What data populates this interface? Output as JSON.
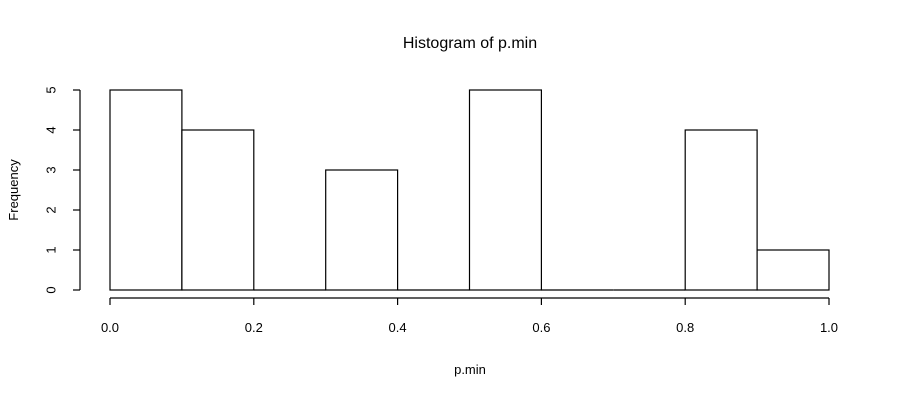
{
  "chart_data": {
    "type": "bar",
    "title": "Histogram of p.min",
    "xlabel": "p.min",
    "ylabel": "Frequency",
    "bins": [
      {
        "from": 0.0,
        "to": 0.1,
        "count": 5
      },
      {
        "from": 0.1,
        "to": 0.2,
        "count": 4
      },
      {
        "from": 0.2,
        "to": 0.3,
        "count": 0
      },
      {
        "from": 0.3,
        "to": 0.4,
        "count": 3
      },
      {
        "from": 0.4,
        "to": 0.5,
        "count": 0
      },
      {
        "from": 0.5,
        "to": 0.6,
        "count": 5
      },
      {
        "from": 0.6,
        "to": 0.7,
        "count": 0
      },
      {
        "from": 0.7,
        "to": 0.8,
        "count": 0
      },
      {
        "from": 0.8,
        "to": 0.9,
        "count": 4
      },
      {
        "from": 0.9,
        "to": 1.0,
        "count": 1
      }
    ],
    "xlim": [
      0.0,
      1.0
    ],
    "ylim": [
      0,
      5
    ],
    "x_ticks": [
      "0.0",
      "0.2",
      "0.4",
      "0.6",
      "0.8",
      "1.0"
    ],
    "y_ticks": [
      "0",
      "1",
      "2",
      "3",
      "4",
      "5"
    ],
    "grid": false,
    "colors": {
      "bar_fill": "#ffffff",
      "bar_stroke": "#000000"
    }
  }
}
